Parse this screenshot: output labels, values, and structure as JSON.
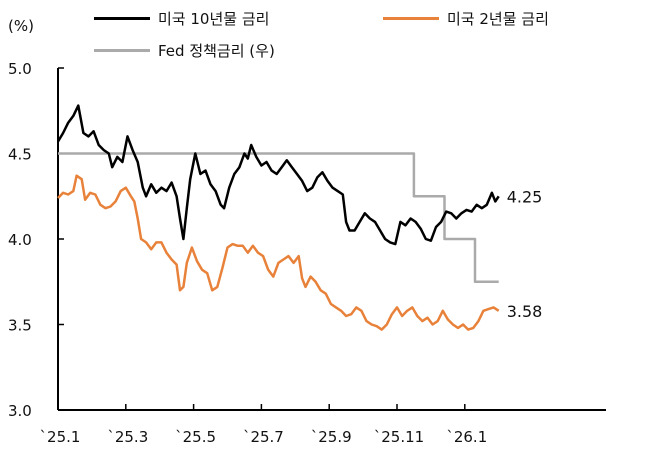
{
  "chart_data": {
    "type": "line",
    "title": "",
    "ylabel": "(%)",
    "xlabel": "",
    "ylim": [
      3.0,
      5.0
    ],
    "yticks": [
      "5.0",
      "4.5",
      "4.0",
      "3.5",
      "3.0"
    ],
    "xticks": [
      "`25.1",
      "`25.3",
      "`25.5",
      "`25.7",
      "`25.9",
      "`25.11",
      "`26.1"
    ],
    "grid": false,
    "legend_position": "top",
    "series": [
      {
        "name": "미국 10년물 금리",
        "color": "#000000",
        "end_label": "4.25",
        "points": [
          [
            0,
            4.57
          ],
          [
            0.15,
            4.62
          ],
          [
            0.3,
            4.68
          ],
          [
            0.45,
            4.72
          ],
          [
            0.6,
            4.78
          ],
          [
            0.75,
            4.62
          ],
          [
            0.9,
            4.6
          ],
          [
            1.05,
            4.63
          ],
          [
            1.2,
            4.55
          ],
          [
            1.35,
            4.52
          ],
          [
            1.5,
            4.5
          ],
          [
            1.6,
            4.42
          ],
          [
            1.75,
            4.48
          ],
          [
            1.9,
            4.45
          ],
          [
            2.05,
            4.6
          ],
          [
            2.2,
            4.52
          ],
          [
            2.35,
            4.45
          ],
          [
            2.5,
            4.3
          ],
          [
            2.6,
            4.25
          ],
          [
            2.75,
            4.32
          ],
          [
            2.9,
            4.27
          ],
          [
            3.05,
            4.3
          ],
          [
            3.2,
            4.28
          ],
          [
            3.35,
            4.33
          ],
          [
            3.5,
            4.25
          ],
          [
            3.6,
            4.12
          ],
          [
            3.7,
            4.0
          ],
          [
            3.8,
            4.18
          ],
          [
            3.9,
            4.35
          ],
          [
            4.05,
            4.5
          ],
          [
            4.2,
            4.38
          ],
          [
            4.35,
            4.4
          ],
          [
            4.5,
            4.32
          ],
          [
            4.65,
            4.28
          ],
          [
            4.8,
            4.2
          ],
          [
            4.9,
            4.18
          ],
          [
            5.05,
            4.3
          ],
          [
            5.2,
            4.38
          ],
          [
            5.35,
            4.42
          ],
          [
            5.5,
            4.5
          ],
          [
            5.6,
            4.47
          ],
          [
            5.7,
            4.55
          ],
          [
            5.85,
            4.48
          ],
          [
            6.0,
            4.43
          ],
          [
            6.15,
            4.45
          ],
          [
            6.3,
            4.4
          ],
          [
            6.45,
            4.38
          ],
          [
            6.6,
            4.42
          ],
          [
            6.75,
            4.46
          ],
          [
            6.9,
            4.42
          ],
          [
            7.05,
            4.38
          ],
          [
            7.2,
            4.34
          ],
          [
            7.35,
            4.28
          ],
          [
            7.5,
            4.3
          ],
          [
            7.65,
            4.36
          ],
          [
            7.8,
            4.39
          ],
          [
            7.95,
            4.34
          ],
          [
            8.1,
            4.3
          ],
          [
            8.25,
            4.28
          ],
          [
            8.4,
            4.26
          ],
          [
            8.5,
            4.1
          ],
          [
            8.6,
            4.05
          ],
          [
            8.75,
            4.05
          ],
          [
            8.9,
            4.1
          ],
          [
            9.05,
            4.15
          ],
          [
            9.2,
            4.12
          ],
          [
            9.35,
            4.1
          ],
          [
            9.5,
            4.05
          ],
          [
            9.65,
            4.0
          ],
          [
            9.8,
            3.98
          ],
          [
            9.95,
            3.97
          ],
          [
            10.1,
            4.1
          ],
          [
            10.25,
            4.08
          ],
          [
            10.4,
            4.12
          ],
          [
            10.55,
            4.1
          ],
          [
            10.7,
            4.06
          ],
          [
            10.85,
            4.0
          ],
          [
            11.0,
            3.99
          ],
          [
            11.15,
            4.07
          ],
          [
            11.3,
            4.1
          ],
          [
            11.45,
            4.16
          ],
          [
            11.6,
            4.15
          ],
          [
            11.75,
            4.12
          ],
          [
            11.9,
            4.15
          ],
          [
            12.05,
            4.17
          ],
          [
            12.2,
            4.16
          ],
          [
            12.35,
            4.2
          ],
          [
            12.5,
            4.18
          ],
          [
            12.65,
            4.2
          ],
          [
            12.8,
            4.27
          ],
          [
            12.9,
            4.22
          ],
          [
            13.0,
            4.25
          ]
        ]
      },
      {
        "name": "미국 2년물 금리",
        "color": "#E8823A",
        "end_label": "3.58",
        "points": [
          [
            0,
            4.24
          ],
          [
            0.15,
            4.27
          ],
          [
            0.3,
            4.26
          ],
          [
            0.45,
            4.28
          ],
          [
            0.55,
            4.37
          ],
          [
            0.7,
            4.35
          ],
          [
            0.8,
            4.23
          ],
          [
            0.95,
            4.27
          ],
          [
            1.1,
            4.26
          ],
          [
            1.25,
            4.2
          ],
          [
            1.4,
            4.18
          ],
          [
            1.55,
            4.19
          ],
          [
            1.7,
            4.22
          ],
          [
            1.85,
            4.28
          ],
          [
            2.0,
            4.3
          ],
          [
            2.15,
            4.25
          ],
          [
            2.25,
            4.22
          ],
          [
            2.35,
            4.12
          ],
          [
            2.45,
            4.0
          ],
          [
            2.6,
            3.98
          ],
          [
            2.75,
            3.94
          ],
          [
            2.9,
            3.98
          ],
          [
            3.05,
            3.98
          ],
          [
            3.2,
            3.92
          ],
          [
            3.35,
            3.88
          ],
          [
            3.5,
            3.85
          ],
          [
            3.6,
            3.7
          ],
          [
            3.7,
            3.72
          ],
          [
            3.8,
            3.86
          ],
          [
            3.95,
            3.95
          ],
          [
            4.1,
            3.87
          ],
          [
            4.25,
            3.82
          ],
          [
            4.4,
            3.8
          ],
          [
            4.55,
            3.7
          ],
          [
            4.7,
            3.72
          ],
          [
            4.85,
            3.83
          ],
          [
            5.0,
            3.95
          ],
          [
            5.15,
            3.97
          ],
          [
            5.3,
            3.96
          ],
          [
            5.45,
            3.96
          ],
          [
            5.6,
            3.92
          ],
          [
            5.75,
            3.96
          ],
          [
            5.9,
            3.92
          ],
          [
            6.05,
            3.9
          ],
          [
            6.2,
            3.82
          ],
          [
            6.35,
            3.78
          ],
          [
            6.5,
            3.86
          ],
          [
            6.65,
            3.88
          ],
          [
            6.8,
            3.9
          ],
          [
            6.95,
            3.86
          ],
          [
            7.1,
            3.9
          ],
          [
            7.2,
            3.77
          ],
          [
            7.3,
            3.72
          ],
          [
            7.45,
            3.78
          ],
          [
            7.6,
            3.75
          ],
          [
            7.75,
            3.7
          ],
          [
            7.9,
            3.68
          ],
          [
            8.05,
            3.62
          ],
          [
            8.2,
            3.6
          ],
          [
            8.35,
            3.58
          ],
          [
            8.5,
            3.55
          ],
          [
            8.65,
            3.56
          ],
          [
            8.8,
            3.6
          ],
          [
            8.95,
            3.58
          ],
          [
            9.1,
            3.52
          ],
          [
            9.25,
            3.5
          ],
          [
            9.4,
            3.49
          ],
          [
            9.55,
            3.47
          ],
          [
            9.7,
            3.5
          ],
          [
            9.85,
            3.56
          ],
          [
            10.0,
            3.6
          ],
          [
            10.15,
            3.55
          ],
          [
            10.3,
            3.58
          ],
          [
            10.45,
            3.6
          ],
          [
            10.6,
            3.55
          ],
          [
            10.75,
            3.52
          ],
          [
            10.9,
            3.54
          ],
          [
            11.05,
            3.5
          ],
          [
            11.2,
            3.52
          ],
          [
            11.35,
            3.58
          ],
          [
            11.5,
            3.53
          ],
          [
            11.65,
            3.5
          ],
          [
            11.8,
            3.48
          ],
          [
            11.95,
            3.5
          ],
          [
            12.1,
            3.47
          ],
          [
            12.25,
            3.48
          ],
          [
            12.4,
            3.52
          ],
          [
            12.55,
            3.58
          ],
          [
            12.7,
            3.59
          ],
          [
            12.85,
            3.6
          ],
          [
            13.0,
            3.58
          ]
        ]
      },
      {
        "name": "Fed 정책금리 (우)",
        "color": "#AAAAAA",
        "end_label": "",
        "points": [
          [
            0,
            4.5
          ],
          [
            10.5,
            4.5
          ],
          [
            10.5,
            4.25
          ],
          [
            11.4,
            4.25
          ],
          [
            11.4,
            4.0
          ],
          [
            12.3,
            4.0
          ],
          [
            12.3,
            3.75
          ],
          [
            13.0,
            3.75
          ]
        ]
      }
    ]
  },
  "legend": [
    {
      "label": "미국 10년물 금리",
      "color": "#000000"
    },
    {
      "label": "미국 2년물 금리",
      "color": "#E8823A"
    },
    {
      "label": "Fed 정책금리 (우)",
      "color": "#AAAAAA"
    }
  ],
  "axis": {
    "unit": "(%)"
  }
}
